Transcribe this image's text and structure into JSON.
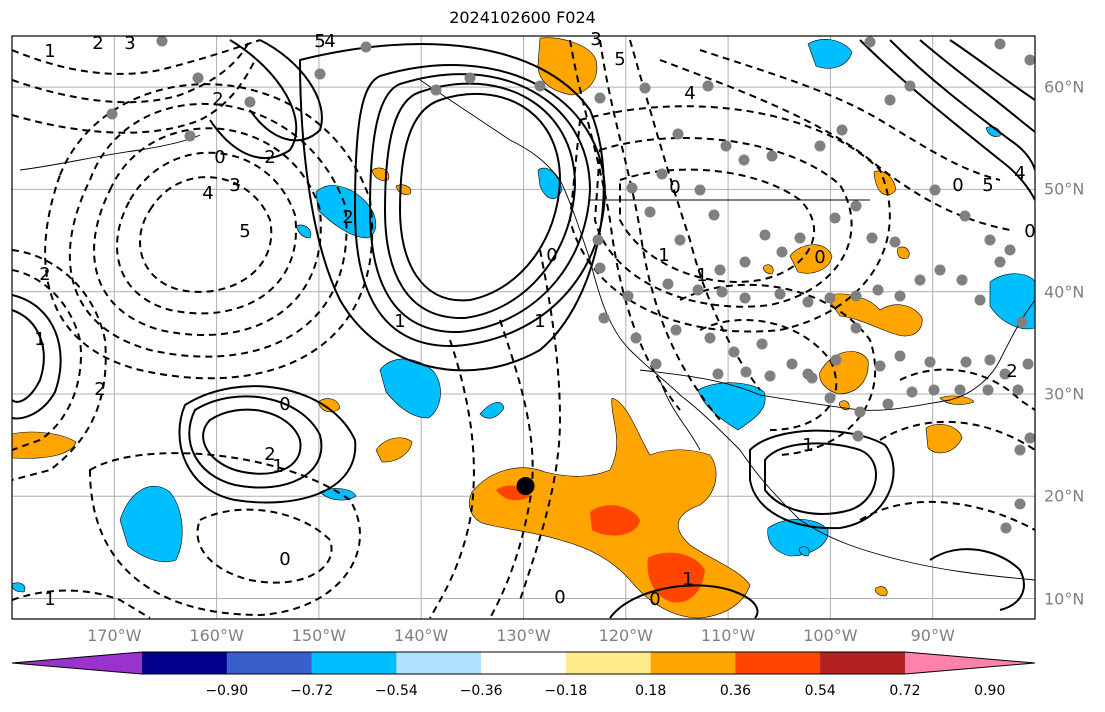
{
  "title": "2024102600 F024",
  "map": {
    "lon_range": [
      -180,
      -80
    ],
    "lat_range": [
      8,
      65
    ],
    "lon_ticks": [
      -170,
      -160,
      -150,
      -140,
      -130,
      -120,
      -110,
      -100,
      -90
    ],
    "lat_ticks": [
      10,
      20,
      30,
      40,
      50,
      60
    ],
    "lon_tick_labels": [
      "170°W",
      "160°W",
      "150°W",
      "140°W",
      "130°W",
      "120°W",
      "110°W",
      "100°W",
      "90°W"
    ],
    "lat_tick_labels": [
      "10°N",
      "20°N",
      "30°N",
      "40°N",
      "50°N",
      "60°N"
    ],
    "grid": true,
    "contour_labels": [
      "1",
      "2",
      "3",
      "4",
      "5",
      "2",
      "0",
      "2",
      "3",
      "4",
      "5",
      "1",
      "0",
      "1",
      "2",
      "2",
      "0",
      "1",
      "0",
      "0",
      "2",
      "1",
      "2",
      "5",
      "3",
      "4",
      "5",
      "4",
      "0",
      "0",
      "1",
      "1",
      "0",
      "2",
      "0",
      "1",
      "1",
      "0",
      "1"
    ],
    "marker": {
      "name": "black-dot",
      "lon": -129.8,
      "lat": 21.0
    }
  },
  "colorbar": {
    "colors": [
      "#9a32cd",
      "#00008b",
      "#3a5fcd",
      "#00bfff",
      "#b0e2ff",
      "#ffffff",
      "#ffec8b",
      "#ffa500",
      "#ff4500",
      "#b22222",
      "#ff82ab"
    ],
    "tick_labels": [
      "−0.90",
      "−0.72",
      "−0.54",
      "−0.36",
      "−0.18",
      "0.18",
      "0.36",
      "0.54",
      "0.72",
      "0.90"
    ],
    "extend": "both"
  },
  "styles": {
    "positive_fill_light": "#ffa500",
    "positive_fill_dark": "#ff4500",
    "negative_fill": "#00bfff",
    "station_dot": "#808080",
    "grid_color": "#b0b0b0"
  }
}
